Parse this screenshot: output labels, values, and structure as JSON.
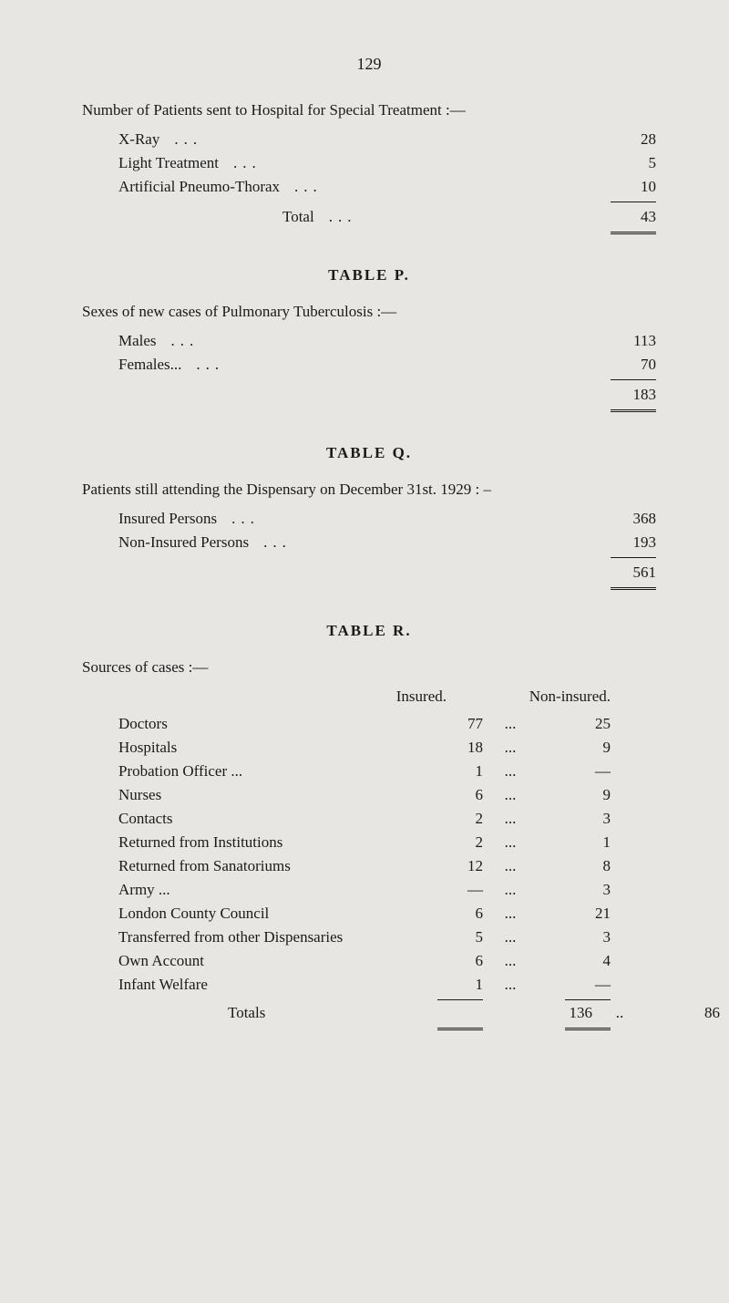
{
  "pageNumber": "129",
  "section1": {
    "heading": "Number of Patients sent to Hospital for Special Treatment :—",
    "rows": [
      {
        "label": "X-Ray",
        "value": "28"
      },
      {
        "label": "Light Treatment",
        "value": "5"
      },
      {
        "label": "Artificial Pneumo-Thorax",
        "value": "10"
      }
    ],
    "totalLabel": "Total",
    "totalValue": "43"
  },
  "tableP": {
    "title": "TABLE  P.",
    "heading": "Sexes of new cases of Pulmonary Tuberculosis :—",
    "rows": [
      {
        "label": "Males",
        "value": "113"
      },
      {
        "label": "Females...",
        "value": "70"
      }
    ],
    "totalValue": "183"
  },
  "tableQ": {
    "title": "TABLE  Q.",
    "heading": "Patients still attending the Dispensary on December 31st. 1929 : –",
    "rows": [
      {
        "label": "Insured Persons",
        "value": "368"
      },
      {
        "label": "Non-Insured Persons",
        "value": "193"
      }
    ],
    "totalValue": "561"
  },
  "tableR": {
    "title": "TABLE  R.",
    "heading": "Sources of cases :—",
    "colHeaders": {
      "insured": "Insured.",
      "nonInsured": "Non-insured."
    },
    "rows": [
      {
        "label": "Doctors",
        "insured": "77",
        "nonInsured": "25"
      },
      {
        "label": "Hospitals",
        "insured": "18",
        "nonInsured": "9"
      },
      {
        "label": "Probation Officer ...",
        "insured": "1",
        "nonInsured": "—"
      },
      {
        "label": "Nurses",
        "insured": "6",
        "nonInsured": "9"
      },
      {
        "label": "Contacts",
        "insured": "2",
        "nonInsured": "3"
      },
      {
        "label": "Returned from Institutions",
        "insured": "2",
        "nonInsured": "1"
      },
      {
        "label": "Returned from Sanatoriums",
        "insured": "12",
        "nonInsured": "8"
      },
      {
        "label": "Army ...",
        "insured": "—",
        "nonInsured": "3"
      },
      {
        "label": "London County Council",
        "insured": "6",
        "nonInsured": "21"
      },
      {
        "label": "Transferred from other Dispensaries",
        "insured": "5",
        "nonInsured": "3"
      },
      {
        "label": "Own Account",
        "insured": "6",
        "nonInsured": "4"
      },
      {
        "label": "Infant Welfare",
        "insured": "1",
        "nonInsured": "—"
      }
    ],
    "totalsLabel": "Totals",
    "totalsInsured": "136",
    "totalsNonInsured": "86"
  }
}
